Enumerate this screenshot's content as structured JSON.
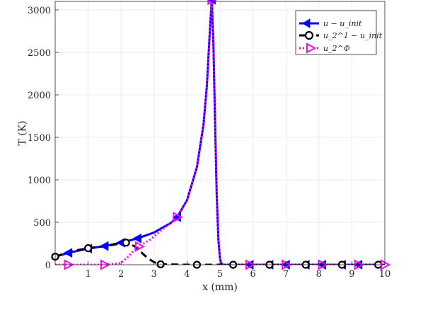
{
  "chart_data": {
    "type": "line",
    "xlabel": "x (mm)",
    "ylabel": "T (K)",
    "xlim": [
      0,
      10
    ],
    "ylim": [
      0,
      3100
    ],
    "xticks": [
      1,
      2,
      3,
      4,
      5,
      6,
      7,
      8,
      9,
      10
    ],
    "yticks": [
      0,
      500,
      1000,
      1500,
      2000,
      2500,
      3000
    ],
    "grid": true,
    "legend_position": "top-right",
    "series": [
      {
        "name": "u − u_init",
        "color": "#0000ff",
        "line_style": "solid",
        "marker": "left-triangle",
        "x": [
          0.05,
          0.4,
          1.0,
          1.5,
          2.0,
          2.5,
          3.0,
          3.5,
          3.7,
          4.0,
          4.3,
          4.5,
          4.6,
          4.7,
          4.75,
          4.8,
          4.85,
          4.9,
          4.95,
          5.0,
          5.05,
          5.1,
          5.3,
          6,
          7,
          8,
          9,
          10
        ],
        "values": [
          100,
          140,
          190,
          220,
          260,
          310,
          380,
          490,
          560,
          760,
          1150,
          1650,
          2100,
          2800,
          3120,
          2600,
          1700,
          850,
          300,
          70,
          10,
          0,
          0,
          0,
          0,
          0,
          0,
          0
        ],
        "marker_x": [
          0.4,
          1.0,
          1.5,
          2.0,
          2.5,
          3.7,
          4.75,
          5.9,
          6.5,
          7.0,
          7.6,
          8.1,
          8.7,
          9.2,
          9.8
        ]
      },
      {
        "name": "u_2^1 − u_init",
        "color": "#000000",
        "line_style": "dashed",
        "marker": "circle",
        "x": [
          0.0,
          0.5,
          1.0,
          1.5,
          2.0,
          2.15,
          2.4,
          2.6,
          2.8,
          3.0,
          3.2,
          4.0,
          5.0,
          6.0,
          7.0,
          8.0,
          9.0,
          10.0
        ],
        "values": [
          95,
          160,
          195,
          220,
          250,
          260,
          220,
          150,
          80,
          30,
          5,
          0,
          0,
          0,
          0,
          0,
          0,
          0
        ],
        "marker_x": [
          0.0,
          1.0,
          2.15,
          3.2,
          4.3,
          5.4,
          6.5,
          7.6,
          8.7,
          9.8
        ]
      },
      {
        "name": "u_2^Φ",
        "color": "#ff00ff",
        "line_style": "dotted",
        "marker": "right-triangle",
        "x": [
          0.0,
          1.5,
          2.0,
          2.2,
          2.4,
          2.6,
          2.9,
          3.2,
          3.5,
          3.7,
          4.0,
          4.3,
          4.5,
          4.6,
          4.7,
          4.75,
          4.8,
          4.85,
          4.9,
          4.95,
          5.0,
          5.05,
          5.1,
          5.3,
          6,
          7,
          8,
          9,
          10
        ],
        "values": [
          0,
          0,
          20,
          90,
          170,
          230,
          300,
          400,
          490,
          560,
          760,
          1150,
          1650,
          2100,
          2800,
          3120,
          2600,
          1700,
          850,
          300,
          70,
          10,
          0,
          0,
          0,
          0,
          0,
          0,
          0
        ],
        "marker_x": [
          0.4,
          1.5,
          2.55,
          3.7,
          4.75,
          5.9,
          7.0,
          8.1,
          9.2,
          10.0
        ]
      }
    ]
  }
}
